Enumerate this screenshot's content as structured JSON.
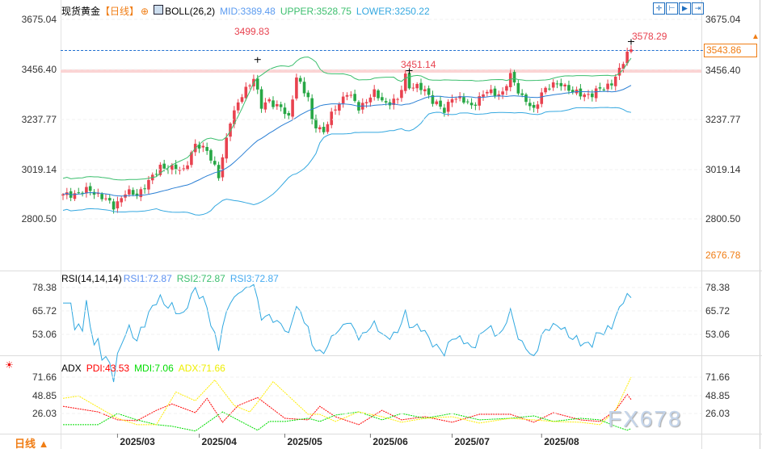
{
  "header": {
    "symbol": "现货黄金",
    "period": "【日线】",
    "indicator": "BOLL(26,2)",
    "mid": "MID:3389.48",
    "upper": "UPPER:3528.75",
    "lower": "LOWER:3250.22"
  },
  "toolbar": [
    "crosshair-icon",
    "zoom-range-icon",
    "play-icon",
    "go-end-icon"
  ],
  "price_axis": {
    "left": [
      "3675.04",
      "3456.40",
      "3237.77",
      "3019.14",
      "2800.50"
    ],
    "right": [
      "3675.04",
      "3456.40",
      "3237.77",
      "3019.14",
      "2800.50"
    ],
    "low_label": "2676.78",
    "current_price": "3543.86"
  },
  "annotations": {
    "high1": "3499.83",
    "high2": "3451.14",
    "high3": "3578.29"
  },
  "rsi": {
    "title": "RSI(14,14,14)",
    "rsi1": "RSI1:72.87",
    "rsi2": "RSI2:72.87",
    "rsi3": "RSI3:72.87",
    "ticks": [
      "78.38",
      "65.72",
      "53.06"
    ]
  },
  "adx": {
    "title": "ADX",
    "pdi": "PDI:43.53",
    "mdi": "MDI:7.06",
    "adx": "ADX:71.66",
    "ticks": [
      "71.66",
      "48.85",
      "26.03"
    ]
  },
  "footer": {
    "period_button": "日线 ▲",
    "months": [
      "2025/03",
      "2025/04",
      "2025/05",
      "2025/06",
      "2025/07",
      "2025/08"
    ]
  },
  "watermark": "FX678",
  "colors": {
    "up": "#e8424f",
    "down": "#27a745",
    "mid": "#2a7fd4",
    "upper": "#3cbf6e",
    "lower": "#35a8e0",
    "rsi": "#30a8e0",
    "pdi": "#ff0000",
    "mdi": "#00dd00",
    "adx": "#ffee00",
    "accent": "#f07d14"
  },
  "chart_data": {
    "type": "candlestick",
    "close_keypoints": [
      [
        "2025-02-11",
        2905
      ],
      [
        "2025-02-14",
        2915
      ],
      [
        "2025-02-20",
        2930
      ],
      [
        "2025-02-25",
        2900
      ],
      [
        "2025-02-28",
        2858
      ],
      [
        "2025-03-05",
        2918
      ],
      [
        "2025-03-10",
        2910
      ],
      [
        "2025-03-14",
        2985
      ],
      [
        "2025-03-18",
        3035
      ],
      [
        "2025-03-21",
        3022
      ],
      [
        "2025-03-26",
        3020
      ],
      [
        "2025-03-31",
        3122
      ],
      [
        "2025-04-03",
        3110
      ],
      [
        "2025-04-08",
        2985
      ],
      [
        "2025-04-11",
        3238
      ],
      [
        "2025-04-16",
        3340
      ],
      [
        "2025-04-21",
        3425
      ],
      [
        "2025-04-23",
        3290
      ],
      [
        "2025-04-25",
        3320
      ],
      [
        "2025-04-30",
        3290
      ],
      [
        "2025-05-02",
        3240
      ],
      [
        "2025-05-06",
        3430
      ],
      [
        "2025-05-09",
        3325
      ],
      [
        "2025-05-12",
        3230
      ],
      [
        "2025-05-15",
        3185
      ],
      [
        "2025-05-20",
        3290
      ],
      [
        "2025-05-23",
        3355
      ],
      [
        "2025-05-28",
        3290
      ],
      [
        "2025-06-03",
        3352
      ],
      [
        "2025-06-06",
        3310
      ],
      [
        "2025-06-11",
        3320
      ],
      [
        "2025-06-13",
        3432
      ],
      [
        "2025-06-16",
        3385
      ],
      [
        "2025-06-20",
        3368
      ],
      [
        "2025-06-24",
        3322
      ],
      [
        "2025-06-27",
        3272
      ],
      [
        "2025-07-01",
        3340
      ],
      [
        "2025-07-03",
        3326
      ],
      [
        "2025-07-08",
        3300
      ],
      [
        "2025-07-14",
        3360
      ],
      [
        "2025-07-18",
        3350
      ],
      [
        "2025-07-22",
        3430
      ],
      [
        "2025-07-25",
        3337
      ],
      [
        "2025-07-30",
        3275
      ],
      [
        "2025-08-01",
        3360
      ],
      [
        "2025-08-05",
        3380
      ],
      [
        "2025-08-08",
        3398
      ],
      [
        "2025-08-13",
        3355
      ],
      [
        "2025-08-20",
        3345
      ],
      [
        "2025-08-22",
        3371
      ],
      [
        "2025-08-27",
        3397
      ],
      [
        "2025-08-29",
        3448
      ],
      [
        "2025-09-02",
        3533
      ],
      [
        "2025-09-03",
        3543.86
      ]
    ],
    "ylim": [
      2676.78,
      3675.04
    ],
    "highs_marked": [
      [
        "2025-04-22",
        3499.83
      ],
      [
        "2025-06-16",
        3451.14
      ],
      [
        "2025-09-03",
        3578.29
      ]
    ],
    "adx_keypoints": {
      "pdi": [
        [
          "2025-02-11",
          35
        ],
        [
          "2025-02-24",
          28
        ],
        [
          "2025-03-03",
          18
        ],
        [
          "2025-03-10",
          17
        ],
        [
          "2025-03-17",
          30
        ],
        [
          "2025-03-21",
          38
        ],
        [
          "2025-03-31",
          27
        ],
        [
          "2025-04-03",
          45
        ],
        [
          "2025-04-09",
          15
        ],
        [
          "2025-04-15",
          36
        ],
        [
          "2025-04-22",
          46
        ],
        [
          "2025-05-01",
          20
        ],
        [
          "2025-05-09",
          18
        ],
        [
          "2025-05-14",
          35
        ],
        [
          "2025-05-20",
          22
        ],
        [
          "2025-05-28",
          12
        ],
        [
          "2025-06-05",
          30
        ],
        [
          "2025-06-12",
          18
        ],
        [
          "2025-06-20",
          22
        ],
        [
          "2025-07-01",
          15
        ],
        [
          "2025-07-10",
          25
        ],
        [
          "2025-07-22",
          25
        ],
        [
          "2025-07-30",
          15
        ],
        [
          "2025-08-06",
          27
        ],
        [
          "2025-08-15",
          18
        ],
        [
          "2025-08-22",
          16
        ],
        [
          "2025-08-28",
          30
        ],
        [
          "2025-09-02",
          50
        ],
        [
          "2025-09-03",
          43.53
        ]
      ],
      "mdi": [
        [
          "2025-02-11",
          12
        ],
        [
          "2025-02-24",
          12
        ],
        [
          "2025-03-03",
          26
        ],
        [
          "2025-03-10",
          18
        ],
        [
          "2025-03-17",
          12
        ],
        [
          "2025-03-21",
          10
        ],
        [
          "2025-03-31",
          4
        ],
        [
          "2025-04-09",
          28
        ],
        [
          "2025-04-22",
          5
        ],
        [
          "2025-04-25",
          16
        ],
        [
          "2025-05-01",
          16
        ],
        [
          "2025-05-09",
          20
        ],
        [
          "2025-05-14",
          16
        ],
        [
          "2025-05-20",
          24
        ],
        [
          "2025-05-28",
          28
        ],
        [
          "2025-06-05",
          18
        ],
        [
          "2025-06-12",
          26
        ],
        [
          "2025-06-20",
          20
        ],
        [
          "2025-07-01",
          26
        ],
        [
          "2025-07-10",
          18
        ],
        [
          "2025-07-22",
          20
        ],
        [
          "2025-07-30",
          23
        ],
        [
          "2025-08-06",
          16
        ],
        [
          "2025-08-15",
          20
        ],
        [
          "2025-08-22",
          18
        ],
        [
          "2025-08-28",
          10
        ],
        [
          "2025-09-02",
          5
        ],
        [
          "2025-09-03",
          7.06
        ]
      ],
      "adx": [
        [
          "2025-02-11",
          45
        ],
        [
          "2025-02-17",
          48
        ],
        [
          "2025-03-03",
          20
        ],
        [
          "2025-03-10",
          12
        ],
        [
          "2025-03-17",
          12
        ],
        [
          "2025-03-24",
          53
        ],
        [
          "2025-03-31",
          42
        ],
        [
          "2025-04-07",
          68
        ],
        [
          "2025-04-14",
          36
        ],
        [
          "2025-04-18",
          28
        ],
        [
          "2025-04-22",
          40
        ],
        [
          "2025-04-28",
          66
        ],
        [
          "2025-05-09",
          25
        ],
        [
          "2025-05-14",
          25
        ],
        [
          "2025-05-20",
          16
        ],
        [
          "2025-05-28",
          28
        ],
        [
          "2025-06-05",
          22
        ],
        [
          "2025-06-12",
          15
        ],
        [
          "2025-06-20",
          20
        ],
        [
          "2025-07-01",
          22
        ],
        [
          "2025-07-10",
          14
        ],
        [
          "2025-07-22",
          20
        ],
        [
          "2025-07-30",
          18
        ],
        [
          "2025-08-06",
          16
        ],
        [
          "2025-08-15",
          15
        ],
        [
          "2025-08-22",
          12
        ],
        [
          "2025-08-28",
          30
        ],
        [
          "2025-09-03",
          71.66
        ]
      ]
    }
  }
}
